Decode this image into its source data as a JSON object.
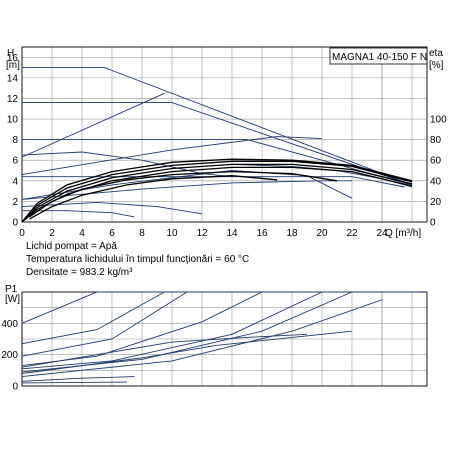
{
  "model": "MAGNA1 40-150 F N",
  "fluid_info": [
    "Lichid pompat = Apă",
    "Temperatura lichidului în timpul funcţionări = 60 °C",
    "Densitate = 983.2 kg/m³"
  ],
  "chart_data": [
    {
      "type": "line",
      "name": "head-efficiency",
      "xlabel": "Q [m³/h]",
      "ylabel": "H\n[m]",
      "y2label": "eta\n[%]",
      "xlim": [
        0,
        27
      ],
      "ylim": [
        0,
        17
      ],
      "y2lim": [
        0,
        170
      ],
      "x_ticks": [
        0,
        2,
        4,
        6,
        8,
        10,
        12,
        14,
        16,
        18,
        20,
        22,
        24
      ],
      "x_tick_labels": [
        "0",
        "2",
        "4",
        "6",
        "8",
        "10",
        "12",
        "14",
        "16",
        "18",
        "20",
        "22",
        "24"
      ],
      "y_ticks": [
        0,
        2,
        4,
        6,
        8,
        10,
        12,
        14,
        16
      ],
      "y_tick_labels": [
        "0",
        "2",
        "4",
        "6",
        "8",
        "10",
        "12",
        "14",
        "16"
      ],
      "y2_ticks": [
        0,
        20,
        40,
        60,
        80,
        100
      ],
      "y2_tick_labels": [
        "0",
        "20",
        "40",
        "60",
        "80",
        "100"
      ],
      "grid": true,
      "series": [
        {
          "kind": "pump",
          "color": "#1f3a6b",
          "points": [
            [
              0,
              15
            ],
            [
              5.5,
              15
            ],
            [
              26,
              3.6
            ]
          ]
        },
        {
          "kind": "pump",
          "color": "#1f3a6b",
          "points": [
            [
              0,
              11.6
            ],
            [
              10,
              11.6
            ],
            [
              26,
              3.6
            ]
          ]
        },
        {
          "kind": "pump",
          "color": "#1f3a6b",
          "points": [
            [
              0,
              8
            ],
            [
              15,
              8
            ],
            [
              26,
              3.6
            ]
          ]
        },
        {
          "kind": "pump",
          "color": "#1f3a6b",
          "points": [
            [
              0,
              4.4
            ],
            [
              22,
              4.4
            ],
            [
              25.5,
              3.4
            ]
          ]
        },
        {
          "kind": "pump",
          "color": "#1f3a6b",
          "points": [
            [
              0,
              6.3
            ],
            [
              9.5,
              12.5
            ]
          ]
        },
        {
          "kind": "pump",
          "color": "#1f3a6b",
          "points": [
            [
              0,
              4.6
            ],
            [
              10,
              7
            ],
            [
              17,
              8.3
            ],
            [
              20,
              8.1
            ]
          ]
        },
        {
          "kind": "pump",
          "color": "#1f3a6b",
          "points": [
            [
              0,
              6.5
            ],
            [
              4,
              6.8
            ],
            [
              8,
              6
            ],
            [
              12,
              4.7
            ],
            [
              14,
              4.4
            ]
          ]
        },
        {
          "kind": "pump",
          "color": "#1f3a6b",
          "points": [
            [
              0,
              2.2
            ],
            [
              8,
              3.2
            ],
            [
              14,
              3.8
            ],
            [
              20,
              4
            ],
            [
              22,
              4
            ]
          ]
        },
        {
          "kind": "pump",
          "color": "#1f3a6b",
          "points": [
            [
              0,
              1.1
            ],
            [
              3,
              1.1
            ],
            [
              6,
              0.9
            ],
            [
              7.5,
              0.5
            ]
          ]
        },
        {
          "kind": "pump",
          "color": "#1f3a6b",
          "points": [
            [
              0,
              2.2
            ],
            [
              6,
              3.6
            ],
            [
              14,
              5
            ],
            [
              19,
              4.5
            ],
            [
              22,
              2.3
            ]
          ]
        },
        {
          "kind": "pump",
          "color": "#1f3a6b",
          "points": [
            [
              0,
              1.5
            ],
            [
              5,
              1.9
            ],
            [
              9,
              1.5
            ],
            [
              12,
              0.8
            ]
          ]
        },
        {
          "kind": "pump",
          "color": "#1f3a6b",
          "points": [
            [
              14,
              5.6
            ],
            [
              18,
              5.4
            ],
            [
              21,
              5
            ],
            [
              24,
              4.2
            ],
            [
              26,
              3.4
            ]
          ]
        },
        {
          "kind": "efficiency",
          "color": "#000000",
          "points": [
            [
              0,
              0
            ],
            [
              1,
              1.4
            ],
            [
              3,
              3
            ],
            [
              6,
              4.3
            ],
            [
              10,
              5.2
            ],
            [
              14,
              5.6
            ],
            [
              18,
              5.6
            ],
            [
              22,
              5.1
            ],
            [
              26,
              3.7
            ]
          ]
        },
        {
          "kind": "efficiency",
          "color": "#000000",
          "points": [
            [
              0,
              0
            ],
            [
              1,
              1.6
            ],
            [
              3,
              3.3
            ],
            [
              6,
              4.6
            ],
            [
              10,
              5.5
            ],
            [
              14,
              5.9
            ],
            [
              18,
              5.9
            ],
            [
              22,
              5.4
            ],
            [
              26,
              3.9
            ]
          ]
        },
        {
          "kind": "efficiency",
          "color": "#000000",
          "points": [
            [
              0,
              0
            ],
            [
              1,
              1.8
            ],
            [
              3,
              3.6
            ],
            [
              6,
              4.9
            ],
            [
              10,
              5.8
            ],
            [
              14,
              6.1
            ],
            [
              18,
              6.0
            ],
            [
              22,
              5.5
            ],
            [
              26,
              4.0
            ]
          ]
        },
        {
          "kind": "efficiency",
          "color": "#000000",
          "points": [
            [
              0,
              0
            ],
            [
              1,
              1.2
            ],
            [
              3,
              2.7
            ],
            [
              6,
              4.0
            ],
            [
              10,
              4.9
            ],
            [
              14,
              5.3
            ],
            [
              18,
              5.3
            ],
            [
              22,
              4.9
            ],
            [
              26,
              3.5
            ]
          ]
        },
        {
          "kind": "efficiency",
          "color": "#000000",
          "points": [
            [
              0.5,
              0.5
            ],
            [
              2,
              2.0
            ],
            [
              4,
              3.2
            ],
            [
              7,
              4.1
            ],
            [
              10,
              4.6
            ],
            [
              14,
              4.9
            ],
            [
              18,
              4.7
            ],
            [
              21,
              4.0
            ]
          ]
        },
        {
          "kind": "efficiency",
          "color": "#000000",
          "points": [
            [
              0.5,
              0.3
            ],
            [
              2,
              1.5
            ],
            [
              4,
              2.6
            ],
            [
              7,
              3.6
            ],
            [
              10,
              4.2
            ],
            [
              14,
              4.5
            ],
            [
              17,
              4.1
            ]
          ]
        }
      ]
    },
    {
      "type": "line",
      "name": "power",
      "ylabel": "P1\n[W]",
      "xlim": [
        0,
        27
      ],
      "ylim": [
        0,
        600
      ],
      "y_ticks": [
        0,
        200,
        400
      ],
      "y_tick_labels": [
        "0",
        "200",
        "400"
      ],
      "x_ticks": [
        0,
        2,
        4,
        6,
        8,
        10,
        12,
        14,
        16,
        18,
        20,
        22,
        24
      ],
      "grid": true,
      "series": [
        {
          "kind": "power",
          "color": "#1f3a6b",
          "points": [
            [
              0,
              400
            ],
            [
              5,
              600
            ],
            [
              26.5,
              600
            ]
          ]
        },
        {
          "kind": "power",
          "color": "#1f3a6b",
          "points": [
            [
              0,
              270
            ],
            [
              5,
              360
            ],
            [
              9.5,
              600
            ]
          ]
        },
        {
          "kind": "power",
          "color": "#1f3a6b",
          "points": [
            [
              0,
              190
            ],
            [
              6,
              300
            ],
            [
              11,
              600
            ]
          ]
        },
        {
          "kind": "power",
          "color": "#1f3a6b",
          "points": [
            [
              0,
              130
            ],
            [
              5,
              190
            ],
            [
              12,
              410
            ],
            [
              16,
              600
            ]
          ]
        },
        {
          "kind": "power",
          "color": "#1f3a6b",
          "points": [
            [
              0,
              110
            ],
            [
              6,
              160
            ],
            [
              14,
              330
            ],
            [
              20,
              600
            ]
          ]
        },
        {
          "kind": "power",
          "color": "#1f3a6b",
          "points": [
            [
              0,
              90
            ],
            [
              8,
              170
            ],
            [
              16,
              350
            ],
            [
              22,
              600
            ]
          ]
        },
        {
          "kind": "power",
          "color": "#1f3a6b",
          "points": [
            [
              0,
              60
            ],
            [
              10,
              160
            ],
            [
              18,
              350
            ],
            [
              24,
              550
            ]
          ]
        },
        {
          "kind": "power",
          "color": "#1f3a6b",
          "points": [
            [
              0,
              120
            ],
            [
              10,
              280
            ],
            [
              15,
              310
            ],
            [
              19,
              330
            ]
          ]
        },
        {
          "kind": "power",
          "color": "#1f3a6b",
          "points": [
            [
              0,
              80
            ],
            [
              8,
              180
            ],
            [
              13,
              260
            ],
            [
              22,
              350
            ]
          ]
        },
        {
          "kind": "power",
          "color": "#1f3a6b",
          "points": [
            [
              0,
              30
            ],
            [
              4,
              50
            ],
            [
              7.5,
              60
            ]
          ]
        },
        {
          "kind": "power",
          "color": "#1f3a6b",
          "points": [
            [
              0,
              20
            ],
            [
              7,
              25
            ]
          ]
        }
      ]
    }
  ]
}
